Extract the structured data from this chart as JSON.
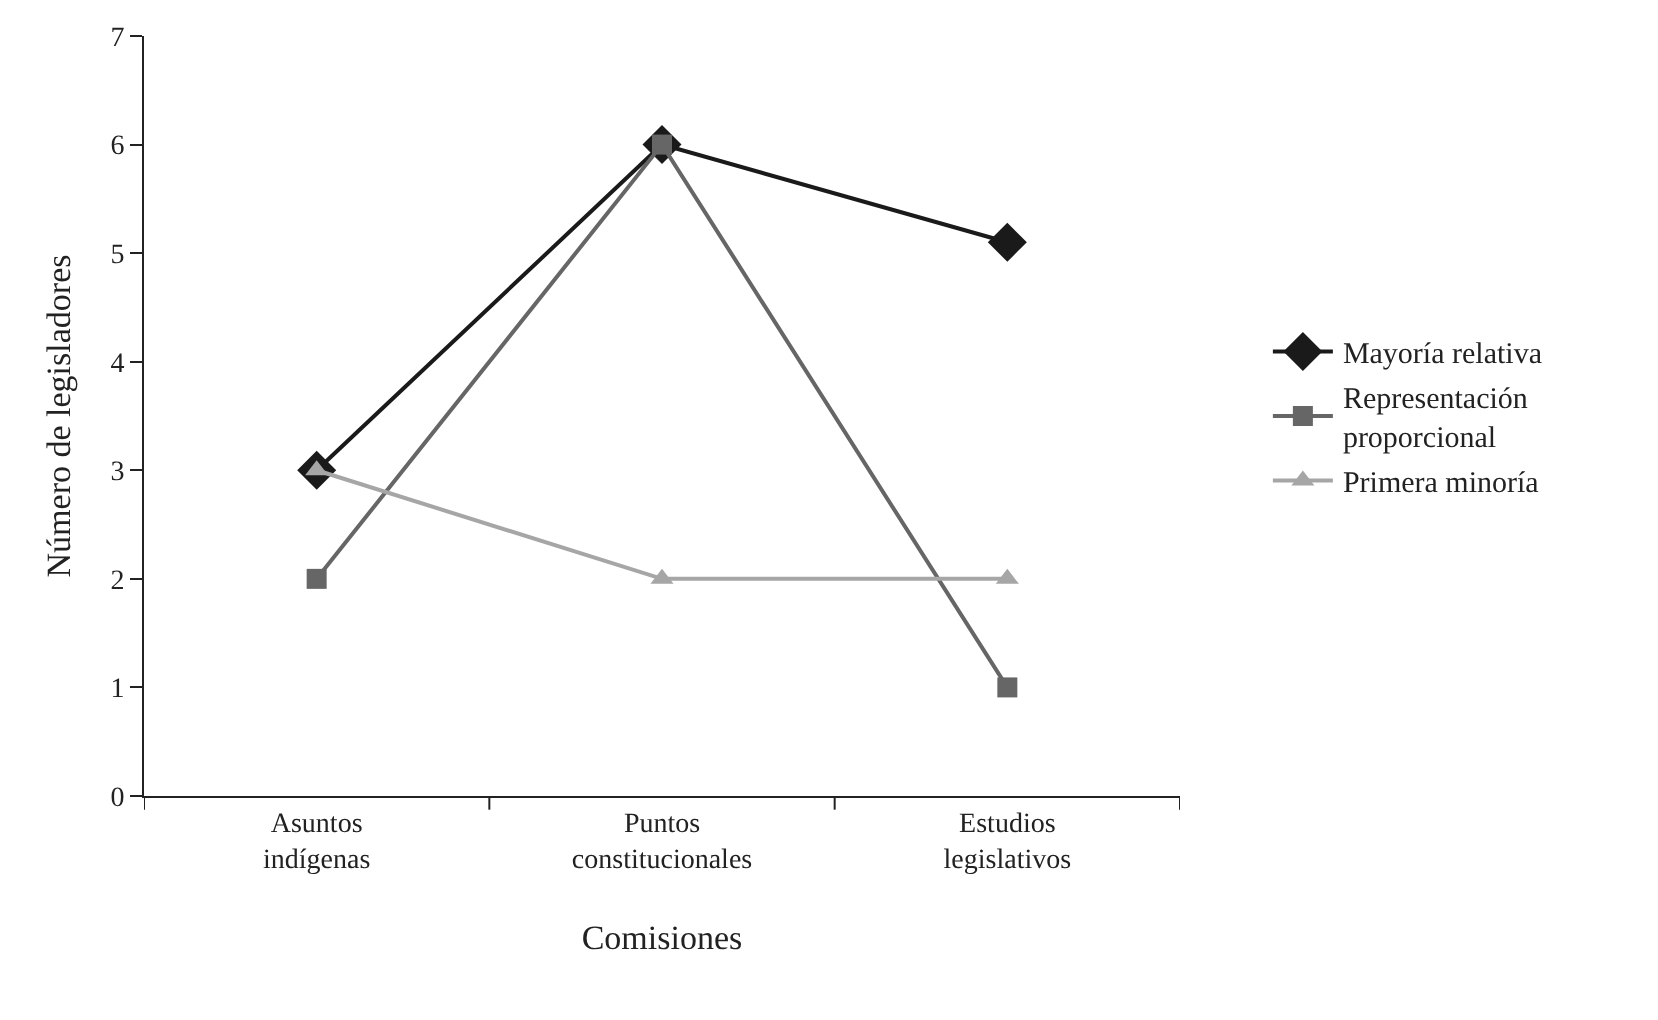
{
  "chart_data": {
    "type": "line",
    "xlabel": "Comisiones",
    "ylabel": "Número de legisladores",
    "categories": [
      "Asuntos\nindígenas",
      "Puntos\nconstitucionales",
      "Estudios\nlegislativos"
    ],
    "series": [
      {
        "name": "Mayoría relativa",
        "color": "#1a1a1a",
        "marker": "diamond",
        "values": [
          3,
          6,
          5.1
        ]
      },
      {
        "name": "Representación\nproporcional",
        "color": "#666666",
        "marker": "square",
        "values": [
          2,
          6,
          1
        ]
      },
      {
        "name": "Primera minoría",
        "color": "#a6a6a6",
        "marker": "triangle",
        "values": [
          3,
          2,
          2
        ]
      }
    ],
    "ylim": [
      0,
      7
    ],
    "yticks": [
      0,
      1,
      2,
      3,
      4,
      5,
      6,
      7
    ],
    "legend": "right",
    "line_style": "solid"
  }
}
